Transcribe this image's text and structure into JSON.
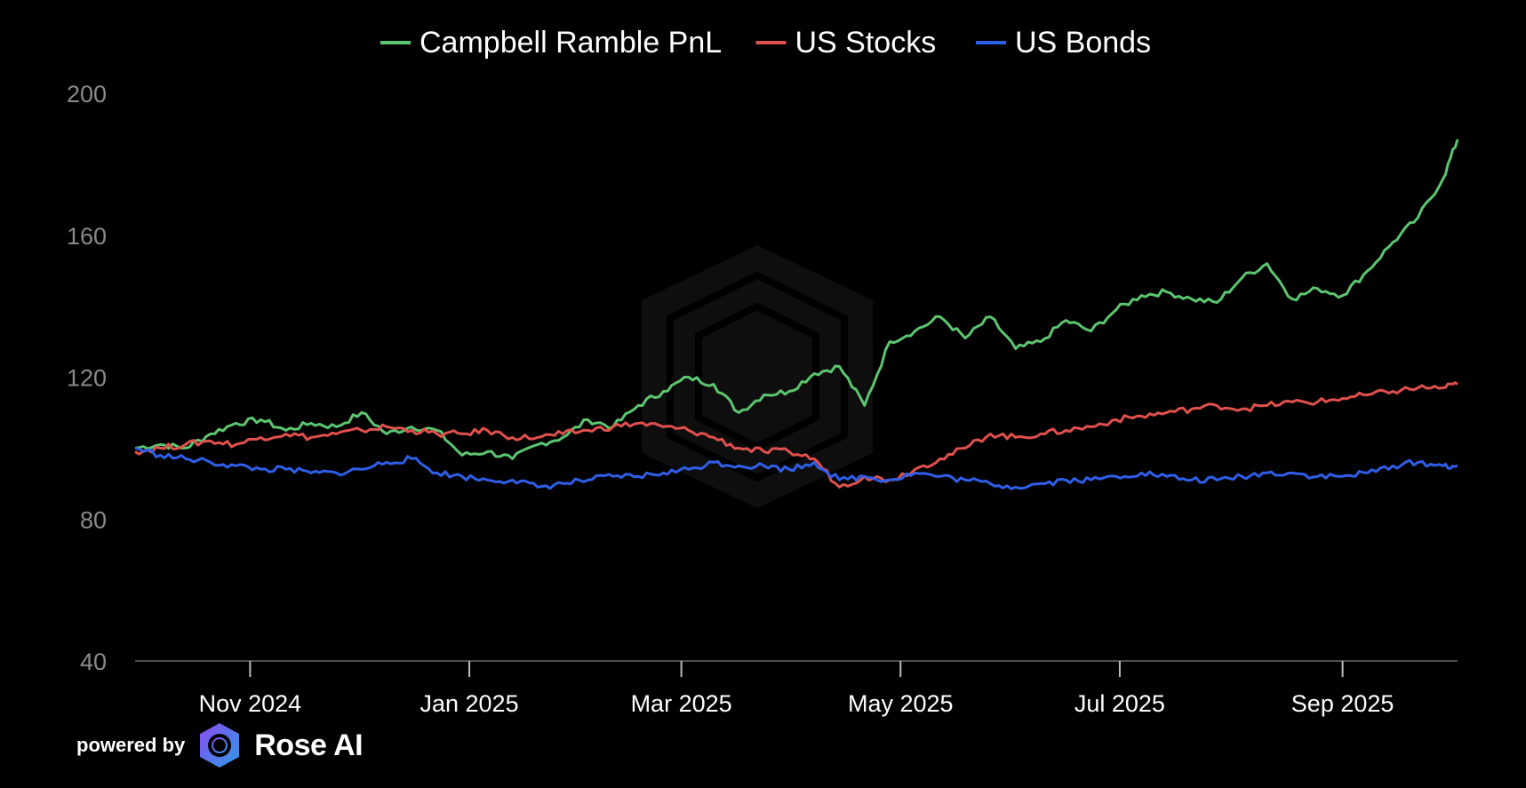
{
  "chart_data": {
    "type": "line",
    "legend": {
      "position": "top-center"
    },
    "y_ticks": [
      "200",
      "160",
      "120",
      "80",
      "40"
    ],
    "ylim": [
      40,
      200
    ],
    "x_ticks": [
      "Nov 2024",
      "Jan 2025",
      "Mar 2025",
      "May 2025",
      "Jul 2025",
      "Sep 2025"
    ],
    "xlim": [
      "2024-09-30",
      "2025-10-03"
    ],
    "grid": false,
    "colors": {
      "background": "#000000",
      "axis": "#666666"
    },
    "series": [
      {
        "name": "Campbell Ramble PnL",
        "color": "#5cc56f",
        "points": [
          [
            "2024-09-30",
            100
          ],
          [
            "2024-10-07",
            101
          ],
          [
            "2024-10-14",
            100
          ],
          [
            "2024-10-21",
            104
          ],
          [
            "2024-10-28",
            107
          ],
          [
            "2024-11-04",
            108
          ],
          [
            "2024-11-11",
            105
          ],
          [
            "2024-11-18",
            107
          ],
          [
            "2024-11-25",
            106
          ],
          [
            "2024-12-02",
            110
          ],
          [
            "2024-12-09",
            104
          ],
          [
            "2024-12-16",
            106
          ],
          [
            "2024-12-23",
            105
          ],
          [
            "2024-12-30",
            98
          ],
          [
            "2025-01-06",
            99
          ],
          [
            "2025-01-13",
            97
          ],
          [
            "2025-01-20",
            101
          ],
          [
            "2025-01-27",
            103
          ],
          [
            "2025-02-03",
            108
          ],
          [
            "2025-02-10",
            106
          ],
          [
            "2025-02-17",
            112
          ],
          [
            "2025-02-24",
            116
          ],
          [
            "2025-03-03",
            120
          ],
          [
            "2025-03-10",
            118
          ],
          [
            "2025-03-17",
            110
          ],
          [
            "2025-03-24",
            115
          ],
          [
            "2025-03-31",
            116
          ],
          [
            "2025-04-07",
            121
          ],
          [
            "2025-04-14",
            123
          ],
          [
            "2025-04-21",
            112
          ],
          [
            "2025-04-28",
            130
          ],
          [
            "2025-05-05",
            133
          ],
          [
            "2025-05-12",
            137
          ],
          [
            "2025-05-19",
            131
          ],
          [
            "2025-05-26",
            137
          ],
          [
            "2025-06-02",
            128
          ],
          [
            "2025-06-09",
            130
          ],
          [
            "2025-06-16",
            136
          ],
          [
            "2025-06-23",
            133
          ],
          [
            "2025-06-30",
            139
          ],
          [
            "2025-07-07",
            143
          ],
          [
            "2025-07-14",
            144
          ],
          [
            "2025-07-21",
            142
          ],
          [
            "2025-07-28",
            141
          ],
          [
            "2025-08-04",
            148
          ],
          [
            "2025-08-11",
            152
          ],
          [
            "2025-08-18",
            142
          ],
          [
            "2025-08-25",
            145
          ],
          [
            "2025-09-01",
            143
          ],
          [
            "2025-09-08",
            150
          ],
          [
            "2025-09-15",
            158
          ],
          [
            "2025-09-22",
            165
          ],
          [
            "2025-09-29",
            176
          ],
          [
            "2025-10-03",
            187
          ]
        ]
      },
      {
        "name": "US Stocks",
        "color": "#e0504c",
        "points": [
          [
            "2024-09-30",
            99
          ],
          [
            "2024-10-07",
            100
          ],
          [
            "2024-10-14",
            101
          ],
          [
            "2024-10-21",
            102
          ],
          [
            "2024-10-28",
            101
          ],
          [
            "2024-11-04",
            103
          ],
          [
            "2024-11-11",
            104
          ],
          [
            "2024-11-18",
            103
          ],
          [
            "2024-11-25",
            104
          ],
          [
            "2024-12-02",
            105
          ],
          [
            "2024-12-09",
            106
          ],
          [
            "2024-12-16",
            105
          ],
          [
            "2024-12-23",
            104
          ],
          [
            "2024-12-30",
            104
          ],
          [
            "2025-01-06",
            105
          ],
          [
            "2025-01-13",
            103
          ],
          [
            "2025-01-20",
            103
          ],
          [
            "2025-01-27",
            104
          ],
          [
            "2025-02-03",
            105
          ],
          [
            "2025-02-10",
            106
          ],
          [
            "2025-02-17",
            107
          ],
          [
            "2025-02-24",
            106
          ],
          [
            "2025-03-03",
            105
          ],
          [
            "2025-03-10",
            103
          ],
          [
            "2025-03-17",
            100
          ],
          [
            "2025-03-24",
            99
          ],
          [
            "2025-03-31",
            99
          ],
          [
            "2025-04-07",
            97
          ],
          [
            "2025-04-14",
            89
          ],
          [
            "2025-04-21",
            92
          ],
          [
            "2025-04-28",
            91
          ],
          [
            "2025-05-05",
            94
          ],
          [
            "2025-05-12",
            97
          ],
          [
            "2025-05-19",
            100
          ],
          [
            "2025-05-26",
            104
          ],
          [
            "2025-06-02",
            103
          ],
          [
            "2025-06-09",
            104
          ],
          [
            "2025-06-16",
            105
          ],
          [
            "2025-06-23",
            106
          ],
          [
            "2025-06-30",
            108
          ],
          [
            "2025-07-07",
            109
          ],
          [
            "2025-07-14",
            110
          ],
          [
            "2025-07-21",
            111
          ],
          [
            "2025-07-28",
            112
          ],
          [
            "2025-08-04",
            111
          ],
          [
            "2025-08-11",
            112
          ],
          [
            "2025-08-18",
            113
          ],
          [
            "2025-08-25",
            113
          ],
          [
            "2025-09-01",
            114
          ],
          [
            "2025-09-08",
            115
          ],
          [
            "2025-09-15",
            116
          ],
          [
            "2025-09-22",
            117
          ],
          [
            "2025-09-29",
            117
          ],
          [
            "2025-10-03",
            118
          ]
        ]
      },
      {
        "name": "US Bonds",
        "color": "#2f5ee8",
        "points": [
          [
            "2024-09-30",
            100
          ],
          [
            "2024-10-07",
            98
          ],
          [
            "2024-10-14",
            97
          ],
          [
            "2024-10-21",
            96
          ],
          [
            "2024-10-28",
            95
          ],
          [
            "2024-11-04",
            94
          ],
          [
            "2024-11-11",
            94
          ],
          [
            "2024-11-18",
            93
          ],
          [
            "2024-11-25",
            93
          ],
          [
            "2024-12-02",
            94
          ],
          [
            "2024-12-09",
            96
          ],
          [
            "2024-12-16",
            97
          ],
          [
            "2024-12-23",
            93
          ],
          [
            "2024-12-30",
            92
          ],
          [
            "2025-01-06",
            91
          ],
          [
            "2025-01-13",
            91
          ],
          [
            "2025-01-20",
            89
          ],
          [
            "2025-01-27",
            90
          ],
          [
            "2025-02-03",
            91
          ],
          [
            "2025-02-10",
            92
          ],
          [
            "2025-02-17",
            92
          ],
          [
            "2025-02-24",
            93
          ],
          [
            "2025-03-03",
            94
          ],
          [
            "2025-03-10",
            96
          ],
          [
            "2025-03-17",
            95
          ],
          [
            "2025-03-24",
            95
          ],
          [
            "2025-03-31",
            94
          ],
          [
            "2025-04-07",
            96
          ],
          [
            "2025-04-14",
            91
          ],
          [
            "2025-04-21",
            92
          ],
          [
            "2025-04-28",
            91
          ],
          [
            "2025-05-05",
            93
          ],
          [
            "2025-05-12",
            92
          ],
          [
            "2025-05-19",
            91
          ],
          [
            "2025-05-26",
            90
          ],
          [
            "2025-06-02",
            89
          ],
          [
            "2025-06-09",
            90
          ],
          [
            "2025-06-16",
            91
          ],
          [
            "2025-06-23",
            91
          ],
          [
            "2025-06-30",
            92
          ],
          [
            "2025-07-07",
            93
          ],
          [
            "2025-07-14",
            92
          ],
          [
            "2025-07-21",
            91
          ],
          [
            "2025-07-28",
            91
          ],
          [
            "2025-08-04",
            92
          ],
          [
            "2025-08-11",
            93
          ],
          [
            "2025-08-18",
            93
          ],
          [
            "2025-08-25",
            92
          ],
          [
            "2025-09-01",
            92
          ],
          [
            "2025-09-08",
            93
          ],
          [
            "2025-09-15",
            95
          ],
          [
            "2025-09-22",
            96
          ],
          [
            "2025-09-29",
            95
          ],
          [
            "2025-10-03",
            95
          ]
        ]
      }
    ]
  },
  "footer": {
    "powered_by": "powered by",
    "brand": "Rose AI"
  }
}
